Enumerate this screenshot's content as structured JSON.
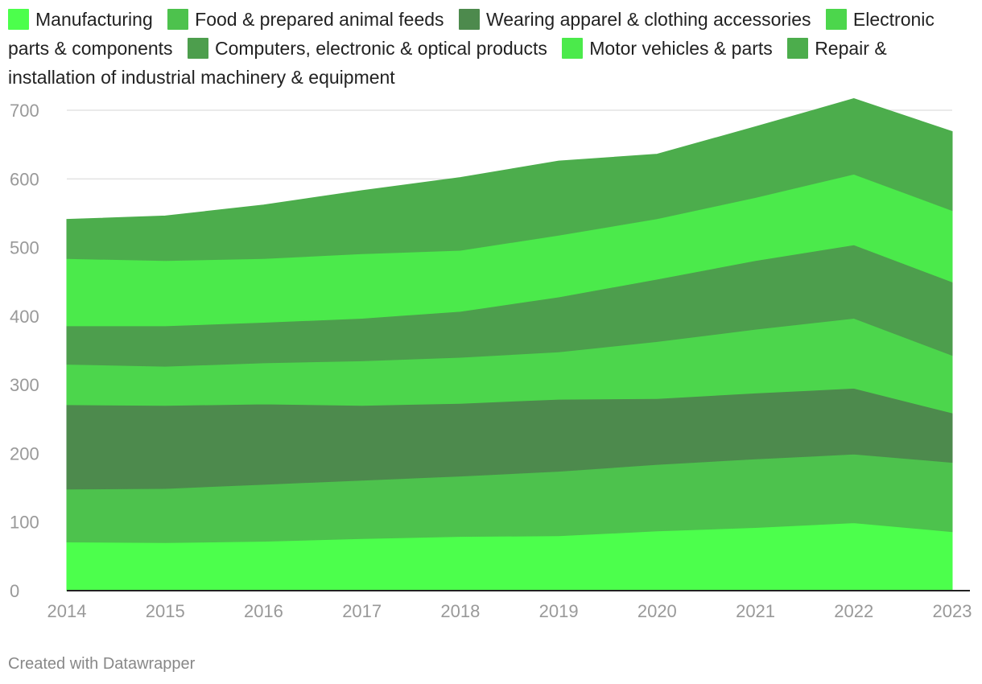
{
  "chart_data": {
    "type": "area",
    "stacked": true,
    "x": [
      2014,
      2015,
      2016,
      2017,
      2018,
      2019,
      2020,
      2021,
      2022,
      2023
    ],
    "ylim": [
      0,
      720
    ],
    "yticks": [
      0,
      100,
      200,
      300,
      400,
      500,
      600,
      700
    ],
    "grid": true,
    "legend_position": "top",
    "series": [
      {
        "name": "Manufacturing",
        "color": "#4cff4c",
        "values": [
          71,
          70,
          72,
          76,
          79,
          80,
          87,
          92,
          99,
          86
        ]
      },
      {
        "name": "Food & prepared animal feeds",
        "color": "#4dc24d",
        "values": [
          77,
          79,
          83,
          85,
          88,
          94,
          97,
          100,
          100,
          101
        ]
      },
      {
        "name": "Wearing apparel & clothing accessories",
        "color": "#4d8a4d",
        "values": [
          123,
          121,
          117,
          109,
          106,
          105,
          96,
          96,
          96,
          72
        ]
      },
      {
        "name": "Electronic parts & components",
        "color": "#4cd64c",
        "values": [
          59,
          57,
          60,
          65,
          67,
          69,
          83,
          93,
          102,
          84
        ]
      },
      {
        "name": "Computers, electronic & optical products",
        "color": "#4d9e4d",
        "values": [
          56,
          59,
          59,
          62,
          67,
          80,
          91,
          100,
          107,
          107
        ]
      },
      {
        "name": "Motor vehicles & parts",
        "color": "#4bea4b",
        "values": [
          98,
          95,
          93,
          94,
          89,
          90,
          88,
          92,
          103,
          104
        ]
      },
      {
        "name": "Repair & installation of industrial machinery & equipment",
        "color": "#4cad4c",
        "values": [
          57,
          65,
          78,
          92,
          106,
          108,
          94,
          103,
          110,
          115
        ]
      }
    ]
  },
  "footer": "Created with Datawrapper"
}
